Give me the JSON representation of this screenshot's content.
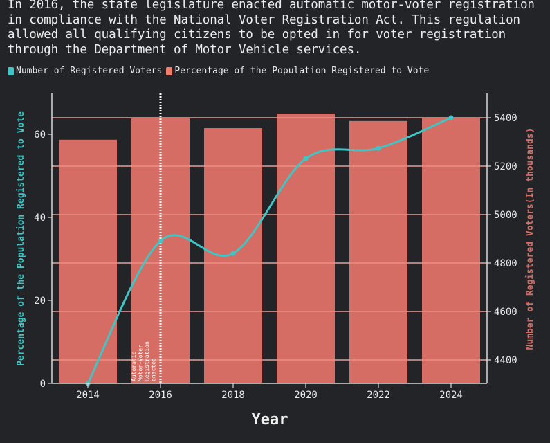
{
  "caption": "In 2016, the state legislature enacted automatic motor-voter registration\nin compliance with the National Voter Registration Act. This regulation\nallowed all qualifying citizens to be opted in for voter registration\nthrough the Department of Motor Vehicle services.",
  "legend": [
    {
      "label": "Number of Registered Voters",
      "color": "#3ec6c6"
    },
    {
      "label": "Percentage of the Population Registered to Vote",
      "color": "#f07c6c"
    }
  ],
  "chart_data": {
    "type": "bar+line",
    "title": "In 2016, the state legislature enacted automatic motor-voter registration in compliance with the National Voter Registration Act. This regulation allowed all qualifying citizens to be opted in for voter registration through the Department of Motor Vehicle services.",
    "xlabel": "Year",
    "ylabel_left": "Percentage of the Population Registered to Vote",
    "ylabel_right": "Number of Registered Voters(In thousands)",
    "categories": [
      "2014",
      "2016",
      "2018",
      "2020",
      "2022",
      "2024"
    ],
    "series": [
      {
        "name": "Percentage of the Population Registered to Vote",
        "type": "bar",
        "axis": "left",
        "color": "#d56d64",
        "values": [
          58.7,
          64.0,
          61.5,
          65.0,
          63.2,
          64.0
        ]
      },
      {
        "name": "Number of Registered Voters",
        "type": "line",
        "axis": "right",
        "color": "#3ec6c6",
        "values": [
          4303,
          4891,
          4840,
          5231,
          5274,
          5400
        ]
      }
    ],
    "left_axis": {
      "ticks": [
        "0",
        "20",
        "40",
        "60"
      ],
      "ylim": [
        0,
        70
      ]
    },
    "right_axis": {
      "ticks": [
        "4400",
        "4600",
        "4800",
        "5000",
        "5200",
        "5400"
      ],
      "ylim": [
        4303,
        5498
      ]
    },
    "annotation": {
      "x": "2016",
      "text": [
        "Automatic",
        "Motor-Voter",
        "Registration",
        "enacted"
      ],
      "style": "dotted vertical line"
    },
    "grid": true,
    "legend_position": "top-left"
  }
}
